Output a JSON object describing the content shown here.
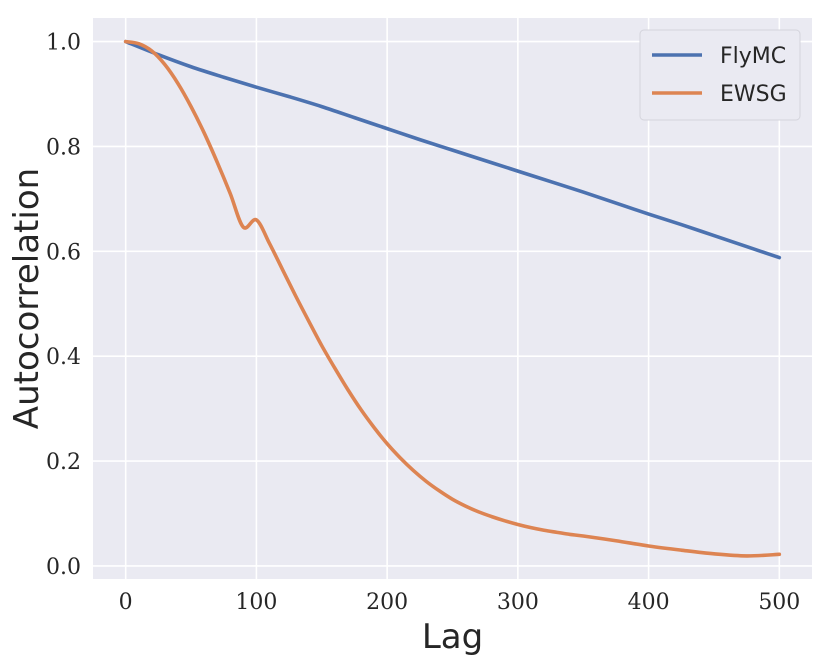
{
  "chart_data": {
    "type": "line",
    "xlabel": "Lag",
    "ylabel": "Autocorrelation",
    "xlim": [
      -25,
      525
    ],
    "ylim": [
      -0.025,
      1.045
    ],
    "xticks": [
      0,
      100,
      200,
      300,
      400,
      500
    ],
    "yticks": [
      0.0,
      0.2,
      0.4,
      0.6,
      0.8,
      1.0
    ],
    "xtick_labels": [
      "0",
      "100",
      "200",
      "300",
      "400",
      "500"
    ],
    "ytick_labels": [
      "0.0",
      "0.2",
      "0.4",
      "0.6",
      "0.8",
      "1.0"
    ],
    "grid": true,
    "legend_position": "top-right",
    "series": [
      {
        "name": "FlyMC",
        "color": "#4c72b0",
        "x": [
          0,
          25,
          50,
          75,
          100,
          125,
          150,
          175,
          200,
          225,
          250,
          275,
          300,
          325,
          350,
          375,
          400,
          425,
          450,
          475,
          500
        ],
        "y": [
          1.0,
          0.975,
          0.952,
          0.932,
          0.913,
          0.895,
          0.876,
          0.855,
          0.834,
          0.813,
          0.793,
          0.773,
          0.753,
          0.733,
          0.713,
          0.692,
          0.671,
          0.651,
          0.63,
          0.609,
          0.588
        ]
      },
      {
        "name": "EWSG",
        "color": "#dd8452",
        "x": [
          0,
          10,
          20,
          30,
          40,
          50,
          60,
          70,
          80,
          90,
          100,
          110,
          120,
          130,
          140,
          150,
          160,
          170,
          180,
          190,
          200,
          210,
          220,
          230,
          240,
          250,
          260,
          270,
          280,
          290,
          300,
          310,
          320,
          330,
          340,
          350,
          375,
          400,
          425,
          450,
          475,
          500
        ],
        "y": [
          1.0,
          0.996,
          0.982,
          0.956,
          0.92,
          0.876,
          0.826,
          0.77,
          0.71,
          0.646,
          0.66,
          0.615,
          0.565,
          0.515,
          0.467,
          0.42,
          0.377,
          0.336,
          0.298,
          0.264,
          0.233,
          0.206,
          0.182,
          0.161,
          0.143,
          0.127,
          0.114,
          0.103,
          0.094,
          0.086,
          0.079,
          0.073,
          0.068,
          0.064,
          0.06,
          0.057,
          0.048,
          0.038,
          0.03,
          0.023,
          0.019,
          0.022
        ]
      }
    ]
  }
}
